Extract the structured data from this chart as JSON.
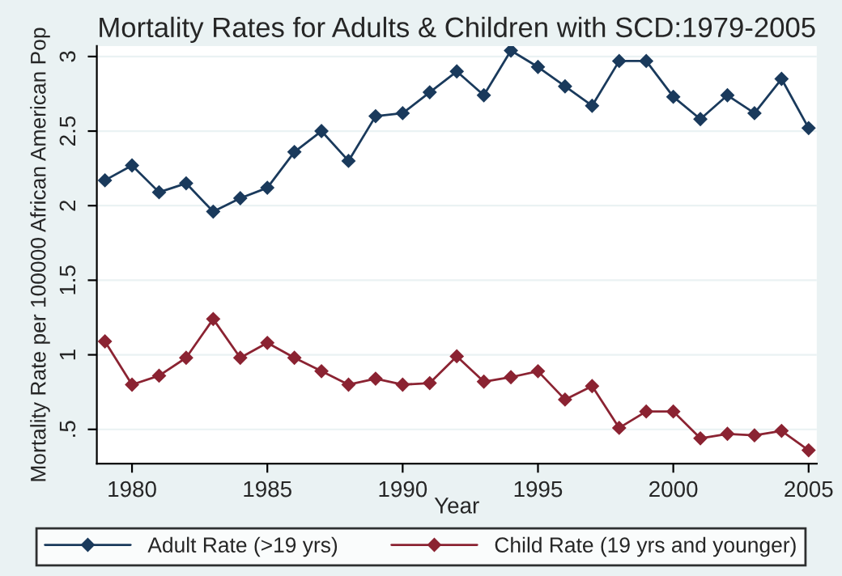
{
  "chart_data": {
    "type": "line",
    "title": "Mortality Rates for Adults & Children with SCD:1979-2005",
    "xlabel": "Year",
    "ylabel": "Mortality Rate per 100000 African American Pop",
    "x": [
      1979,
      1980,
      1981,
      1982,
      1983,
      1984,
      1985,
      1986,
      1987,
      1988,
      1989,
      1990,
      1991,
      1992,
      1993,
      1994,
      1995,
      1996,
      1997,
      1998,
      1999,
      2000,
      2001,
      2002,
      2003,
      2004,
      2005
    ],
    "series": [
      {
        "name": "Adult Rate (>19 yrs)",
        "color": "#1a3a5c",
        "values": [
          2.17,
          2.27,
          2.09,
          2.15,
          1.96,
          2.05,
          2.12,
          2.36,
          2.5,
          2.3,
          2.6,
          2.62,
          2.76,
          2.9,
          2.74,
          3.04,
          2.93,
          2.8,
          2.67,
          2.97,
          2.97,
          2.73,
          2.58,
          2.74,
          2.62,
          2.85,
          2.52
        ]
      },
      {
        "name": "Child Rate (19 yrs and younger)",
        "color": "#8b2332",
        "values": [
          1.09,
          0.8,
          0.86,
          0.98,
          1.24,
          0.98,
          1.08,
          0.98,
          0.89,
          0.8,
          0.84,
          0.8,
          0.81,
          0.99,
          0.82,
          0.85,
          0.89,
          0.7,
          0.79,
          0.51,
          0.62,
          0.62,
          0.44,
          0.47,
          0.46,
          0.49,
          0.36
        ]
      }
    ],
    "xlim": [
      1978.7,
      2005.3
    ],
    "xticks": [
      1980,
      1985,
      1990,
      1995,
      2000,
      2005
    ],
    "ylim": [
      0.27,
      3.07
    ],
    "yticks": [
      {
        "value": 0.5,
        "label": ".5"
      },
      1,
      1.5,
      2,
      2.5,
      3
    ],
    "grid": "y",
    "legend": "bottom",
    "marker": "diamond",
    "line_style": "solid"
  }
}
